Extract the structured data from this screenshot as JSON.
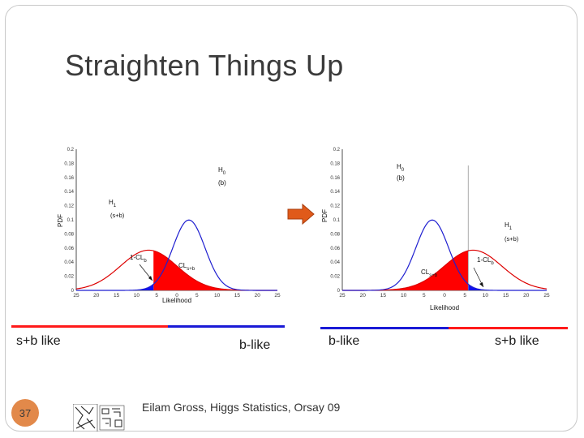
{
  "slide": {
    "title": "Straighten Things Up",
    "page_number": "37",
    "footer": "Eilam Gross, Higgs Statistics, Orsay 09",
    "colors": {
      "sb_curve": "#dd0000",
      "b_curve": "#1f1fd0",
      "sb_region": "#ff0000",
      "b_region": "#1111ee",
      "badge": "#e2894a",
      "arrow": "#e05a1a"
    }
  },
  "left_plot": {
    "ylabel": "PDF",
    "xlabel": "Likelihood",
    "yticks": [
      "0.2",
      "0.18",
      "0.16",
      "0.14",
      "0.12",
      "0.1",
      "0.08",
      "0.06",
      "0.04",
      "0.02",
      "0"
    ],
    "xticks": [
      "25",
      "20",
      "15",
      "10",
      "5",
      "0",
      "5",
      "10",
      "15",
      "20",
      "25"
    ],
    "h0_label": "H",
    "h0_sub": "0",
    "h0_desc": "(b)",
    "h1_label": "H",
    "h1_sub": "1",
    "h1_desc": "(s+b)",
    "one_minus_clb": "1-CL",
    "one_minus_clb_sub": "b",
    "clsb": "CL",
    "clsb_sub": "s+b"
  },
  "right_plot": {
    "ylabel": "PDF",
    "xlabel": "Likelihood",
    "yticks": [
      "0.2",
      "0.18",
      "0.16",
      "0.14",
      "0.12",
      "0.1",
      "0.08",
      "0.06",
      "0.04",
      "0.02",
      "0"
    ],
    "xticks": [
      "25",
      "20",
      "15",
      "10",
      "5",
      "0",
      "5",
      "10",
      "15",
      "20",
      "25"
    ],
    "h0_label": "H",
    "h0_sub": "0",
    "h0_desc": "(b)",
    "h1_label": "H",
    "h1_sub": "1",
    "h1_desc": "(s+b)",
    "one_minus_clb": "1-CL",
    "one_minus_clb_sub": "b",
    "clsb": "CL",
    "clsb_sub": "s+b"
  },
  "left_axis": {
    "left_label": "s+b like",
    "right_label": "b-like"
  },
  "right_axis": {
    "left_label": "b-like",
    "right_label": "s+b like"
  }
}
